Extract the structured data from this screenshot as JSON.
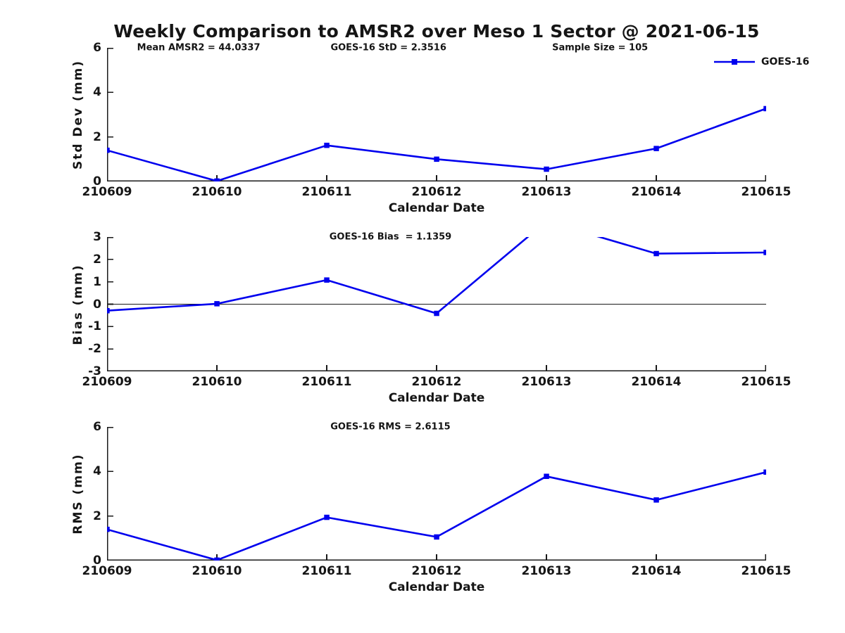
{
  "title": "Weekly Comparison to AMSR2 over Meso 1 Sector @ 2021-06-15",
  "legend": {
    "label": "GOES-16"
  },
  "colors": {
    "series": "#0000EE",
    "axis": "#1a1a1a",
    "zero_line": "#1a1a1a",
    "text": "#151515",
    "background": "#ffffff"
  },
  "chart_data": [
    {
      "type": "line",
      "name": "std-dev",
      "title": "",
      "xlabel": "Calendar Date",
      "ylabel": "Std Dev (mm)",
      "categories": [
        "210609",
        "210610",
        "210611",
        "210612",
        "210613",
        "210614",
        "210615"
      ],
      "series": [
        {
          "name": "GOES-16",
          "values": [
            1.4,
            0.02,
            1.62,
            1.0,
            0.55,
            1.48,
            3.27
          ]
        }
      ],
      "ylim": [
        0,
        6
      ],
      "yticks": [
        0,
        2,
        4,
        6
      ],
      "grid": false,
      "zero_line": false,
      "legend_position": "top-right",
      "marker": "square",
      "annotations": [
        {
          "text": "Mean AMSR2 = 44.0337",
          "xfrac": 0.139
        },
        {
          "text": "GOES-16 StD = 2.3516",
          "xfrac": 0.427
        },
        {
          "text": "Sample Size = 105",
          "xfrac": 0.748
        }
      ]
    },
    {
      "type": "line",
      "name": "bias",
      "title": "",
      "xlabel": "Calendar Date",
      "ylabel": "Bias (mm)",
      "categories": [
        "210609",
        "210610",
        "210611",
        "210612",
        "210613",
        "210614",
        "210615"
      ],
      "series": [
        {
          "name": "GOES-16",
          "values": [
            -0.29,
            0.02,
            1.08,
            -0.41,
            3.7,
            2.26,
            2.31
          ]
        }
      ],
      "ylim": [
        -3,
        3
      ],
      "yticks": [
        -3,
        -2,
        -1,
        0,
        1,
        2,
        3
      ],
      "grid": false,
      "zero_line": true,
      "clip_note": "value 3.70 at 210613 exceeds ylim and is clipped at top",
      "marker": "square",
      "annotations": [
        {
          "text": "GOES-16 Bias  = 1.1359",
          "xfrac": 0.43
        }
      ]
    },
    {
      "type": "line",
      "name": "rms",
      "title": "",
      "xlabel": "Calendar Date",
      "ylabel": "RMS (mm)",
      "categories": [
        "210609",
        "210610",
        "210611",
        "210612",
        "210613",
        "210614",
        "210615"
      ],
      "series": [
        {
          "name": "GOES-16",
          "values": [
            1.4,
            0.02,
            1.94,
            1.06,
            3.78,
            2.72,
            3.97
          ]
        }
      ],
      "ylim": [
        0,
        6
      ],
      "yticks": [
        0,
        2,
        4,
        6
      ],
      "grid": false,
      "zero_line": false,
      "marker": "square",
      "annotations": [
        {
          "text": "GOES-16 RMS = 2.6115",
          "xfrac": 0.43
        }
      ]
    }
  ]
}
